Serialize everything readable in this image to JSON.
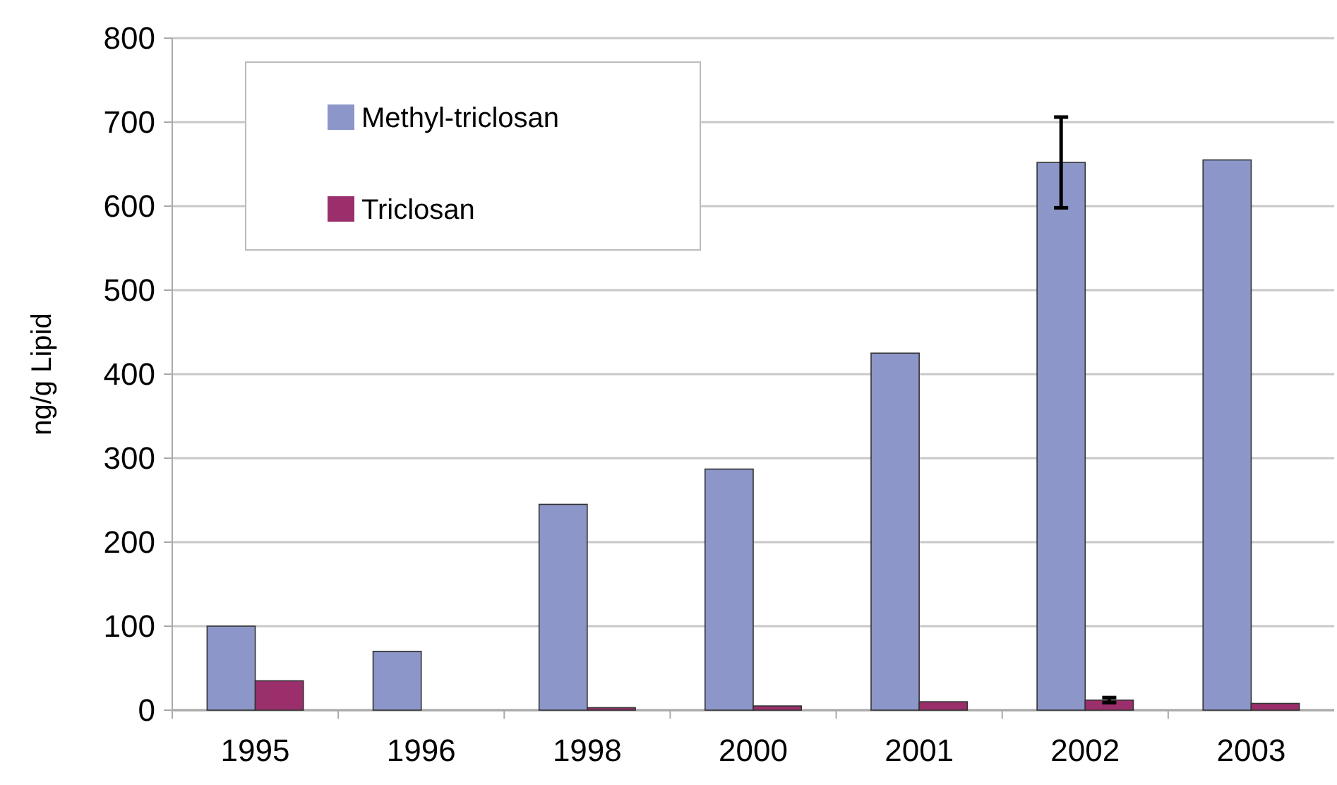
{
  "chart_data": {
    "type": "bar",
    "ylabel": "ng/g Lipid",
    "categories": [
      "1995",
      "1996",
      "1998",
      "2000",
      "2001",
      "2002",
      "2003"
    ],
    "series": [
      {
        "name": "Methyl-triclosan",
        "color": "#8c96c8",
        "values": [
          100,
          70,
          245,
          287,
          425,
          652,
          655
        ],
        "errors": [
          null,
          null,
          null,
          null,
          null,
          [
            598,
            706
          ],
          null
        ]
      },
      {
        "name": "Triclosan",
        "color": "#9b2f6c",
        "values": [
          35,
          null,
          3,
          5,
          10,
          12,
          8
        ],
        "errors": [
          null,
          null,
          null,
          null,
          null,
          3,
          null
        ]
      }
    ],
    "ylim": [
      0,
      800
    ],
    "yticks": [
      0,
      100,
      200,
      300,
      400,
      500,
      600,
      700,
      800
    ],
    "grid": "y",
    "legend": "top left"
  }
}
